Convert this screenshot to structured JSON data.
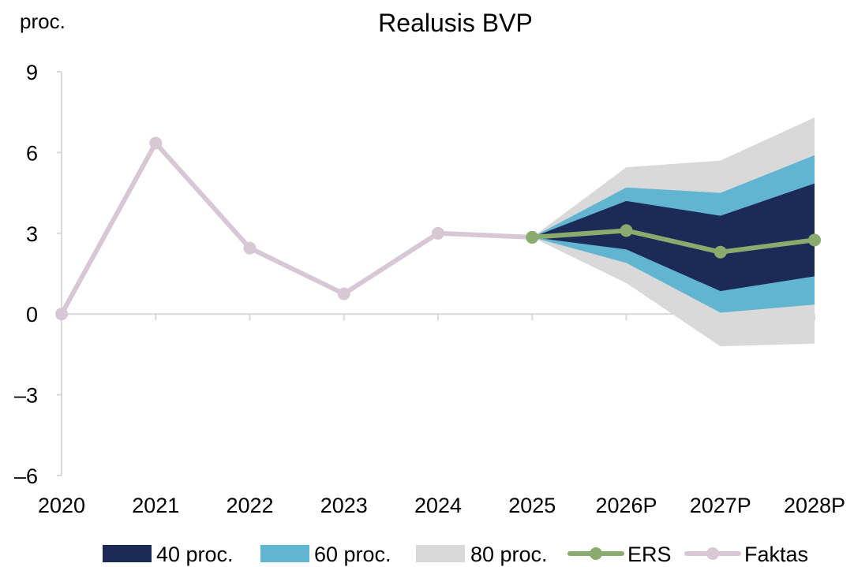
{
  "chart_data": {
    "type": "area",
    "title": "Realusis BVP",
    "ylabel": "proc.",
    "xlabel": "",
    "categories": [
      "2020",
      "2021",
      "2022",
      "2023",
      "2024",
      "2025",
      "2026P",
      "2027P",
      "2028P"
    ],
    "ylim": [
      -6,
      9
    ],
    "yticks": [
      -6,
      -3,
      0,
      3,
      6,
      9
    ],
    "ytick_labels": [
      "–6",
      "–3",
      "0",
      "3",
      "6",
      "9"
    ],
    "grid": false,
    "legend_position": "bottom",
    "fan": [
      {
        "name": "80 proc.",
        "color": "#d9d9d9",
        "lower": [
          null,
          null,
          null,
          null,
          null,
          2.85,
          1.15,
          -1.2,
          -1.1
        ],
        "upper": [
          null,
          null,
          null,
          null,
          null,
          2.85,
          5.45,
          5.7,
          7.3
        ]
      },
      {
        "name": "60 proc.",
        "color": "#62b5d0",
        "lower": [
          null,
          null,
          null,
          null,
          null,
          2.85,
          1.9,
          0.05,
          0.35
        ],
        "upper": [
          null,
          null,
          null,
          null,
          null,
          2.85,
          4.7,
          4.5,
          5.9
        ]
      },
      {
        "name": "40 proc.",
        "color": "#1b2a57",
        "lower": [
          null,
          null,
          null,
          null,
          null,
          2.85,
          2.4,
          0.85,
          1.4
        ],
        "upper": [
          null,
          null,
          null,
          null,
          null,
          2.85,
          4.2,
          3.65,
          4.85
        ]
      }
    ],
    "series": [
      {
        "name": "Faktas",
        "color": "#d8c8d6",
        "values": [
          0.0,
          6.35,
          2.45,
          0.75,
          3.0,
          2.85,
          null,
          null,
          null
        ]
      },
      {
        "name": "ERS",
        "color": "#8aab6e",
        "values": [
          null,
          null,
          null,
          null,
          null,
          2.85,
          3.1,
          2.3,
          2.75
        ]
      }
    ],
    "legend": [
      {
        "name": "40 proc.",
        "kind": "box",
        "color": "#1b2a57"
      },
      {
        "name": "60 proc.",
        "kind": "box",
        "color": "#62b5d0"
      },
      {
        "name": "80 proc.",
        "kind": "box",
        "color": "#d9d9d9"
      },
      {
        "name": "ERS",
        "kind": "line",
        "color": "#8aab6e"
      },
      {
        "name": "Faktas",
        "kind": "line",
        "color": "#d8c8d6"
      }
    ]
  }
}
